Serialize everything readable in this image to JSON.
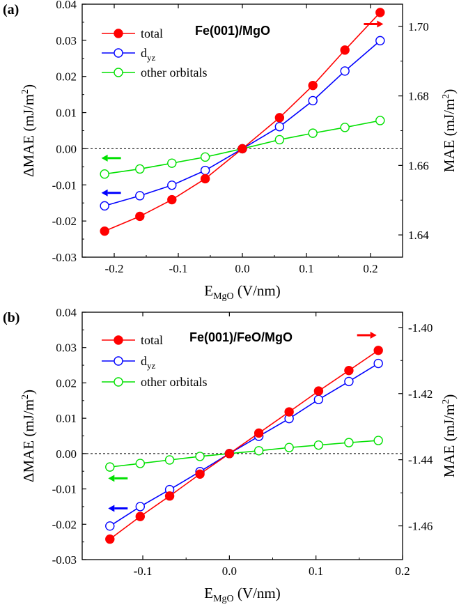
{
  "chart_data": [
    {
      "type": "line",
      "panel_label": "(a)",
      "system_label": "Fe(001)/MgO",
      "xlabel_main": "E",
      "xlabel_sub": "MgO",
      "xlabel_unit": " (V/nm)",
      "ylabel_left": "ΔMAE (mJ/m",
      "ylabel_right": "MAE (mJ/m",
      "ylabel_sup": "2",
      "ylabel_close": ")",
      "xlim": [
        -0.25,
        0.25
      ],
      "ylim": [
        -0.03,
        0.04
      ],
      "ylim_right": [
        1.6336,
        1.7064
      ],
      "x_ticks": [
        -0.2,
        -0.1,
        0.0,
        0.1,
        0.2
      ],
      "x_tick_labels": [
        "-0.2",
        "-0.1",
        "0.0",
        "0.1",
        "0.2"
      ],
      "y_ticks": [
        -0.03,
        -0.02,
        -0.01,
        0.0,
        0.01,
        0.02,
        0.03,
        0.04
      ],
      "y_tick_labels": [
        "-0.03",
        "-0.02",
        "-0.01",
        "0.00",
        "0.01",
        "0.02",
        "0.03",
        "0.04"
      ],
      "y_right_ticks": [
        1.64,
        1.66,
        1.68,
        1.7
      ],
      "y_right_tick_labels": [
        "1.64",
        "1.66",
        "1.68",
        "1.70"
      ],
      "zero_line": true,
      "x": [
        -0.215,
        -0.16,
        -0.11,
        -0.058,
        0.0,
        0.058,
        0.11,
        0.16,
        0.215
      ],
      "series": [
        {
          "name": "total",
          "color": "#ff0000",
          "filled": true,
          "values": [
            -0.0228,
            -0.0187,
            -0.0141,
            -0.0083,
            0.0,
            0.0086,
            0.0175,
            0.0273,
            0.0377
          ]
        },
        {
          "name": "d",
          "name_sub": "yz",
          "color": "#0000ff",
          "filled": false,
          "values": [
            -0.0158,
            -0.013,
            -0.0101,
            -0.006,
            0.0,
            0.0061,
            0.0133,
            0.0215,
            0.0299
          ]
        },
        {
          "name": "other orbitals",
          "color": "#00e000",
          "filled": false,
          "values": [
            -0.007,
            -0.0056,
            -0.004,
            -0.0023,
            0.0,
            0.0025,
            0.0043,
            0.0059,
            0.0078
          ]
        }
      ],
      "arrows": [
        {
          "color": "#ff0000",
          "direction": "right",
          "x": 0.22,
          "y": 0.0345
        },
        {
          "color": "#00e000",
          "direction": "left",
          "x": -0.22,
          "y": -0.0026
        },
        {
          "color": "#0000ff",
          "direction": "left",
          "x": -0.22,
          "y": -0.0122
        }
      ]
    },
    {
      "type": "line",
      "panel_label": "(b)",
      "system_label": "Fe(001)/FeO/MgO",
      "xlabel_main": "E",
      "xlabel_sub": "MgO",
      "xlabel_unit": " (V/nm)",
      "ylabel_left": "ΔMAE (mJ/m",
      "ylabel_right": "MAE (mJ/m",
      "ylabel_sup": "2",
      "ylabel_close": ")",
      "xlim": [
        -0.17,
        0.2
      ],
      "ylim": [
        -0.03,
        0.04
      ],
      "ylim_right": [
        -1.4702,
        -1.3954
      ],
      "x_ticks": [
        -0.1,
        0.0,
        0.1,
        0.2
      ],
      "x_tick_labels": [
        "-0.1",
        "0.0",
        "0.1",
        "0.2"
      ],
      "y_ticks": [
        -0.03,
        -0.02,
        -0.01,
        0.0,
        0.01,
        0.02,
        0.03,
        0.04
      ],
      "y_tick_labels": [
        "-0.03",
        "-0.02",
        "-0.01",
        "0.00",
        "0.01",
        "0.02",
        "0.03",
        "0.04"
      ],
      "y_right_ticks": [
        -1.46,
        -1.44,
        -1.42,
        -1.4
      ],
      "y_right_tick_labels": [
        "-1.46",
        "-1.44",
        "-1.42",
        "-1.40"
      ],
      "zero_line": true,
      "x": [
        -0.138,
        -0.103,
        -0.069,
        -0.034,
        0.0,
        0.034,
        0.069,
        0.103,
        0.138,
        0.172
      ],
      "series": [
        {
          "name": "total",
          "color": "#ff0000",
          "filled": true,
          "values": [
            -0.0242,
            -0.0178,
            -0.012,
            -0.0058,
            0.0,
            0.0058,
            0.0118,
            0.0177,
            0.0235,
            0.0292
          ]
        },
        {
          "name": "d",
          "name_sub": "yz",
          "color": "#0000ff",
          "filled": false,
          "values": [
            -0.0205,
            -0.015,
            -0.0102,
            -0.0051,
            0.0,
            0.0049,
            0.0099,
            0.0153,
            0.0204,
            0.0255
          ]
        },
        {
          "name": "other orbitals",
          "color": "#00e000",
          "filled": false,
          "values": [
            -0.0038,
            -0.0028,
            -0.0018,
            -0.0008,
            0.0,
            0.0008,
            0.0017,
            0.0024,
            0.0031,
            0.0037
          ]
        }
      ],
      "arrows": [
        {
          "color": "#ff0000",
          "direction": "right",
          "x": 0.17,
          "y": 0.0335
        },
        {
          "color": "#00e000",
          "direction": "left",
          "x": -0.14,
          "y": -0.007
        },
        {
          "color": "#0000ff",
          "direction": "left",
          "x": -0.14,
          "y": -0.0155
        }
      ]
    }
  ]
}
